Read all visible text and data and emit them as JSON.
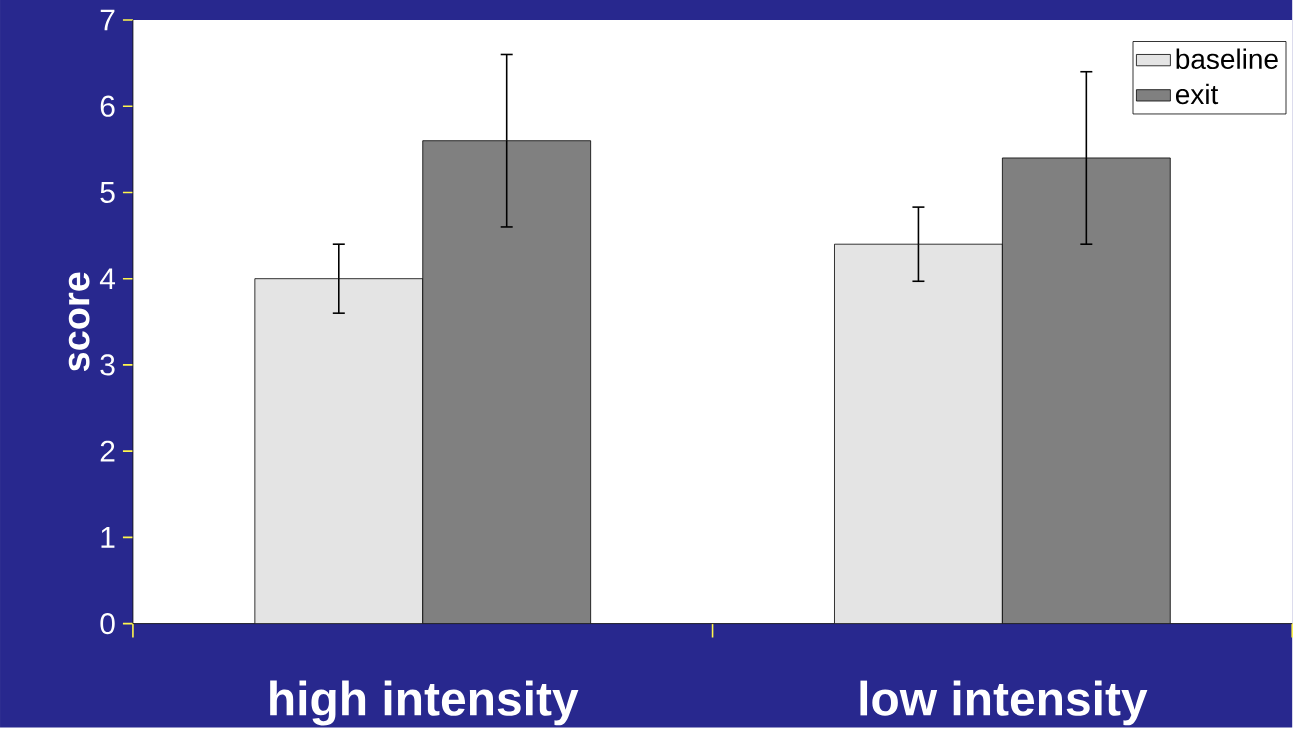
{
  "chart_data": {
    "type": "bar",
    "ylabel": "score",
    "categories": [
      "high intensity",
      "low intensity"
    ],
    "series": [
      {
        "name": "baseline",
        "color": "#e4e4e4",
        "values": [
          4.0,
          4.4
        ],
        "errors": [
          [
            3.6,
            4.4
          ],
          [
            3.97,
            4.83
          ]
        ]
      },
      {
        "name": "exit",
        "color": "#808080",
        "values": [
          5.6,
          5.4
        ],
        "errors": [
          [
            4.6,
            6.6
          ],
          [
            4.4,
            6.4
          ]
        ]
      }
    ],
    "ylim": [
      0,
      7
    ],
    "yticks": [
      0,
      1,
      2,
      3,
      4,
      5,
      6,
      7
    ],
    "grid": false,
    "legend": "top right"
  }
}
